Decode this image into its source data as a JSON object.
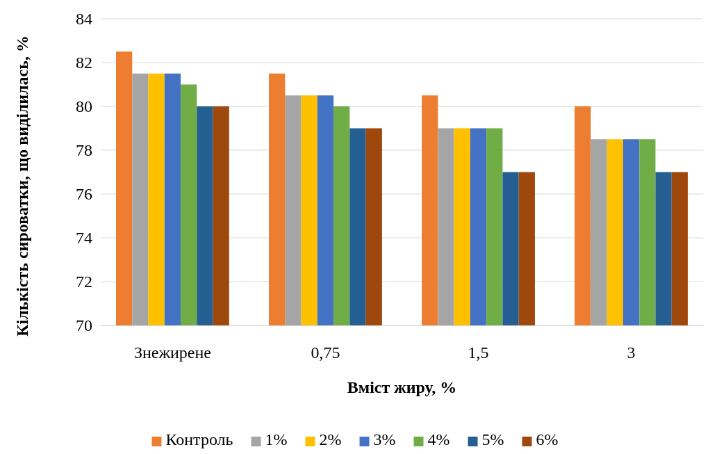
{
  "chart_data": {
    "type": "bar",
    "xlabel": "Вміст жиру, %",
    "ylabel": "Кількість сироватки, що виділилась, %",
    "categories": [
      "Знежирене",
      "0,75",
      "1,5",
      "3"
    ],
    "series": [
      {
        "name": "Контроль",
        "color": "#ed7d31",
        "values": [
          82.5,
          81.5,
          80.5,
          80
        ]
      },
      {
        "name": "1%",
        "color": "#a5a5a5",
        "values": [
          81.5,
          80.5,
          79,
          78.5
        ]
      },
      {
        "name": "2%",
        "color": "#ffc000",
        "values": [
          81.5,
          80.5,
          79,
          78.5
        ]
      },
      {
        "name": "3%",
        "color": "#4472c4",
        "values": [
          81.5,
          80.5,
          79,
          78.5
        ]
      },
      {
        "name": "4%",
        "color": "#70ad47",
        "values": [
          81,
          80,
          79,
          78.5
        ]
      },
      {
        "name": "5%",
        "color": "#255e91",
        "values": [
          80,
          79,
          77,
          77
        ]
      },
      {
        "name": "6%",
        "color": "#9e480e",
        "values": [
          80,
          79,
          77,
          77
        ]
      }
    ],
    "ylim": [
      70,
      84
    ],
    "yticks": [
      70,
      72,
      74,
      76,
      78,
      80,
      82,
      84
    ],
    "grid": "y",
    "legend": "bottom"
  }
}
